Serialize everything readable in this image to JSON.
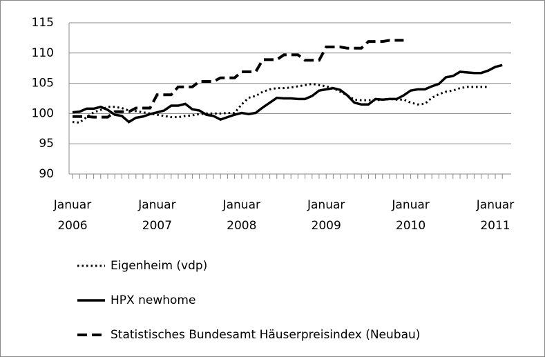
{
  "chart_data": {
    "type": "line",
    "categories": [
      "Januar 2006",
      null,
      null,
      null,
      null,
      null,
      null,
      null,
      null,
      null,
      null,
      null,
      "Januar 2007",
      null,
      null,
      null,
      null,
      null,
      null,
      null,
      null,
      null,
      null,
      null,
      "Januar 2008",
      null,
      null,
      null,
      null,
      null,
      null,
      null,
      null,
      null,
      null,
      null,
      "Januar 2009",
      null,
      null,
      null,
      null,
      null,
      null,
      null,
      null,
      null,
      null,
      null,
      "Januar 2010",
      null,
      null,
      null,
      null,
      null,
      null,
      null,
      null,
      null,
      null,
      null,
      "Januar 2011",
      null
    ],
    "series": [
      {
        "name": "Eigenheim (vdp)",
        "color": "#000000",
        "dash": "dotted",
        "values": [
          98.6,
          98.5,
          99.4,
          100.2,
          100.6,
          101.1,
          101.1,
          100.9,
          100.5,
          100.4,
          100.2,
          100.0,
          99.8,
          99.6,
          99.4,
          99.4,
          99.6,
          99.7,
          99.9,
          100.0,
          100.0,
          100.0,
          100.1,
          100.1,
          101.5,
          102.6,
          102.9,
          103.6,
          104.0,
          104.2,
          104.2,
          104.3,
          104.5,
          104.7,
          104.9,
          104.7,
          104.5,
          104.2,
          103.6,
          103.0,
          102.3,
          102.2,
          102.2,
          102.2,
          102.3,
          102.4,
          102.3,
          102.3,
          101.8,
          101.5,
          101.6,
          102.6,
          103.2,
          103.6,
          103.8,
          104.2,
          104.4,
          104.4,
          104.4,
          104.4,
          null,
          null
        ]
      },
      {
        "name": "HPX newhome",
        "color": "#000000",
        "dash": "solid",
        "values": [
          100.2,
          100.3,
          100.8,
          100.8,
          101.1,
          100.6,
          99.8,
          99.6,
          98.6,
          99.3,
          99.5,
          99.9,
          100.2,
          100.5,
          101.3,
          101.3,
          101.6,
          100.7,
          100.5,
          99.8,
          99.6,
          99.0,
          99.4,
          99.8,
          100.1,
          99.9,
          100.1,
          101.0,
          101.8,
          102.6,
          102.5,
          102.5,
          102.4,
          102.4,
          102.9,
          103.8,
          104.0,
          104.2,
          103.9,
          103.0,
          101.8,
          101.5,
          101.5,
          102.4,
          102.3,
          102.4,
          102.4,
          103.0,
          103.8,
          104.0,
          104.0,
          104.5,
          104.9,
          106.0,
          106.2,
          106.9,
          106.8,
          106.7,
          106.7,
          107.1,
          107.7,
          108.0
        ]
      },
      {
        "name": "Statistisches Bundesamt Häuserpreisindex (Neubau)",
        "color": "#000000",
        "dash": "dashed",
        "values": [
          99.5,
          99.5,
          99.5,
          99.4,
          99.4,
          99.4,
          100.3,
          100.3,
          100.3,
          100.9,
          100.9,
          100.9,
          103.1,
          103.1,
          103.1,
          104.4,
          104.4,
          104.4,
          105.3,
          105.3,
          105.3,
          105.9,
          105.9,
          105.9,
          106.9,
          106.9,
          106.9,
          108.9,
          108.9,
          108.9,
          109.7,
          109.7,
          109.7,
          108.8,
          108.8,
          108.8,
          111.0,
          111.0,
          111.0,
          110.8,
          110.8,
          110.8,
          111.9,
          111.9,
          111.9,
          112.1,
          112.1,
          112.1,
          null,
          null,
          null,
          null,
          null,
          null,
          null,
          null,
          null,
          null,
          null,
          null,
          null,
          null
        ]
      }
    ],
    "ylim": [
      90,
      115
    ],
    "yticks": [
      90,
      95,
      100,
      105,
      110,
      115
    ],
    "grid": true,
    "legend": "bottom"
  }
}
